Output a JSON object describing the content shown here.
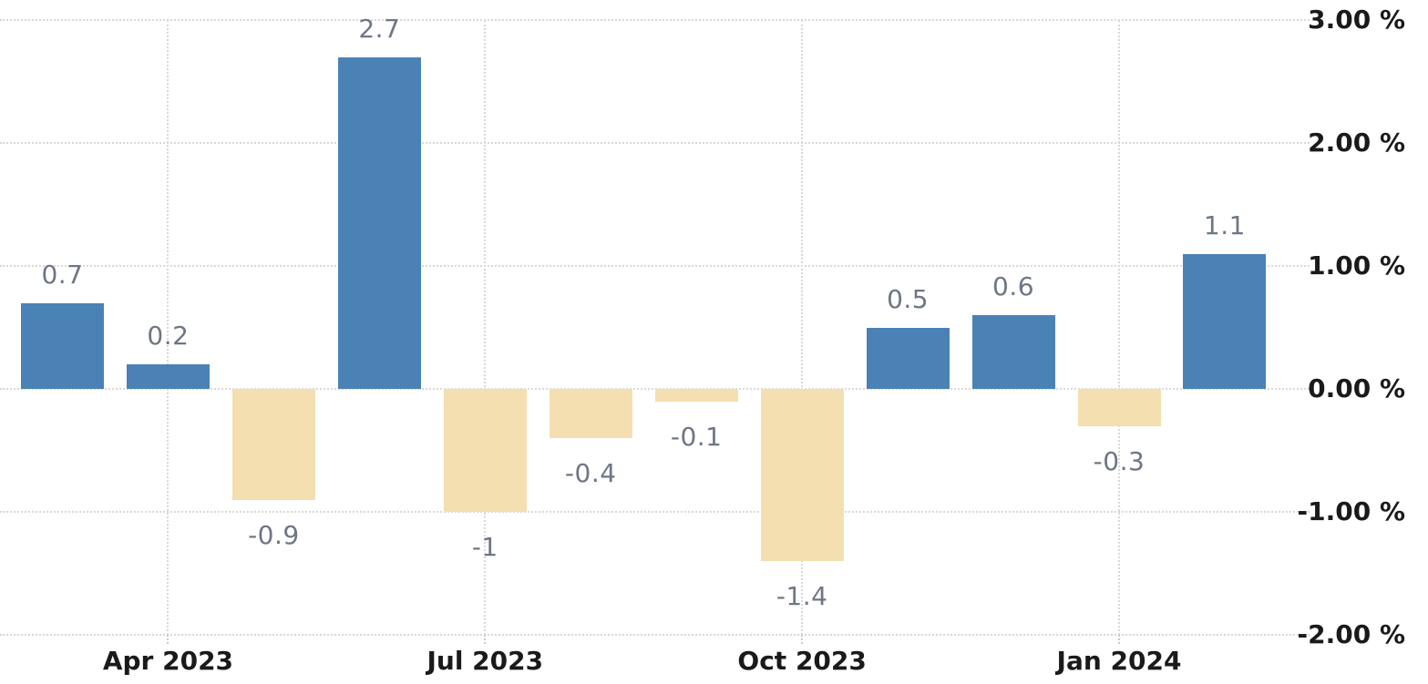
{
  "chart": {
    "background_color": "#ffffff",
    "positive_bar_color": "#4a82b5",
    "negative_bar_color": "#f4dfb1",
    "grid_color": "#d8d8d8",
    "value_label_color": "#6e7685",
    "axis_label_color": "#1a1a1a"
  },
  "chart_data": {
    "type": "bar",
    "title": "",
    "unit": "%",
    "grid": true,
    "legend": false,
    "values": [
      0.7,
      0.2,
      -0.9,
      2.7,
      -1,
      -0.4,
      -0.1,
      -1.4,
      0.5,
      0.6,
      -0.3,
      1.1
    ],
    "value_labels": [
      "0.7",
      "0.2",
      "-0.9",
      "2.7",
      "-1",
      "-0.4",
      "-0.1",
      "-1.4",
      "0.5",
      "0.6",
      "-0.3",
      "1.1"
    ],
    "x_tick_labels": [
      "Apr 2023",
      "Jul 2023",
      "Oct 2023",
      "Jan 2024"
    ],
    "x_tick_bar_indexes": [
      1,
      4,
      7,
      10
    ],
    "y_ticks": [
      {
        "value": 3,
        "label": "3.00 %"
      },
      {
        "value": 2,
        "label": "2.00 %"
      },
      {
        "value": 1,
        "label": "1.00 %"
      },
      {
        "value": 0,
        "label": "0.00 %"
      },
      {
        "value": -1,
        "label": "-1.00 %"
      },
      {
        "value": -2,
        "label": "-2.00 %"
      }
    ],
    "ylim": [
      -2.2,
      3.16
    ]
  }
}
